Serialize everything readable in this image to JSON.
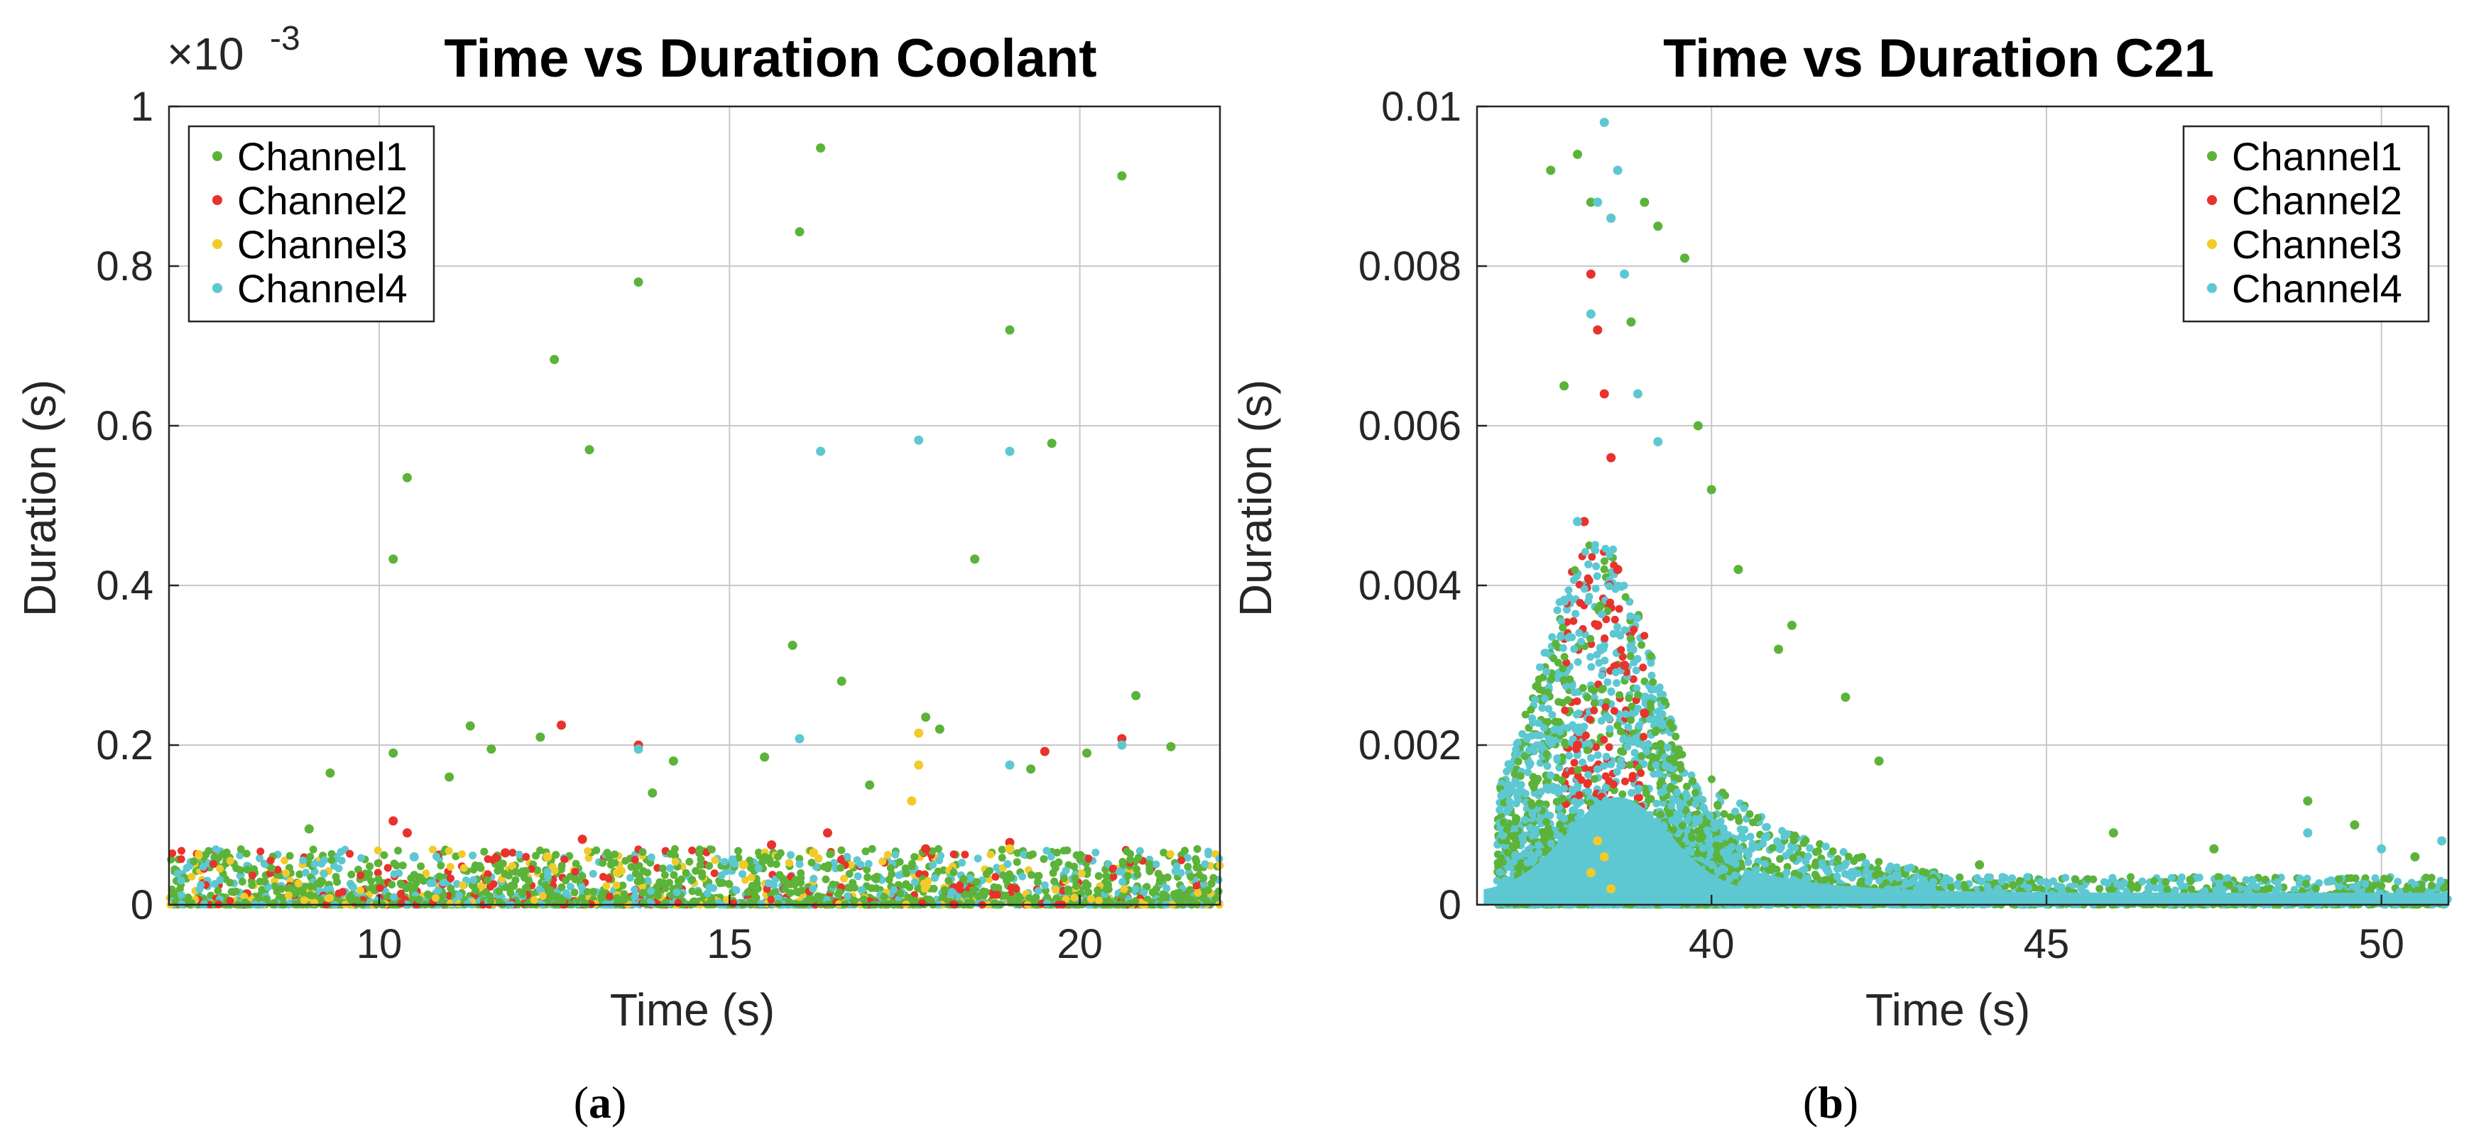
{
  "chart_data": [
    {
      "type": "scatter",
      "title": "Time vs Duration Coolant",
      "xlabel": "Time (s)",
      "ylabel": "Duration (s)",
      "exponent_base": "×10",
      "exponent_power": "-3",
      "xlim": [
        7,
        22
      ],
      "ylim": [
        0,
        0.001
      ],
      "xticks": [
        10,
        15,
        20
      ],
      "xtick_labels": [
        "10",
        "15",
        "20"
      ],
      "yticks": [
        0,
        0.0002,
        0.0004,
        0.0006,
        0.0008,
        0.001
      ],
      "ytick_labels": [
        "0",
        "0.2",
        "0.4",
        "0.6",
        "0.8",
        "1"
      ],
      "grid": true,
      "legend_position": "top-left",
      "panel_label": "a",
      "series": [
        {
          "name": "Channel1",
          "color": "#5cb33a",
          "x": [
            10.2,
            10.4,
            12.5,
            13.0,
            13.7,
            16.0,
            16.3,
            19.0,
            19.6,
            20.6,
            18.5,
            10.2,
            11.3,
            15.9,
            16.6,
            20.8,
            17.8,
            18.0,
            9.3,
            11.6,
            14.2,
            20.1,
            21.3,
            12.3,
            15.5,
            9.0,
            11.0,
            13.9,
            17.0,
            19.3
          ],
          "y": [
            0.000433,
            0.000535,
            0.000683,
            0.00057,
            0.00078,
            0.000843,
            0.000948,
            0.00072,
            0.000578,
            0.000913,
            0.000433,
            0.00019,
            0.000224,
            0.000325,
            0.00028,
            0.000262,
            0.000235,
            0.00022,
            0.000165,
            0.000195,
            0.00018,
            0.00019,
            0.000198,
            0.00021,
            0.000185,
            9.5e-05,
            0.00016,
            0.00014,
            0.00015,
            0.00017
          ]
        },
        {
          "name": "Channel2",
          "color": "#e8322b",
          "x": [
            10.2,
            10.4,
            12.6,
            13.7,
            16.4,
            19.5,
            20.6,
            12.9,
            15.6,
            17.8,
            19.0,
            11.8
          ],
          "y": [
            0.000105,
            9e-05,
            0.000225,
            0.0002,
            9e-05,
            0.000192,
            0.000208,
            8.2e-05,
            7.5e-05,
            7e-05,
            7.8e-05,
            6.5e-05
          ]
        },
        {
          "name": "Channel3",
          "color": "#f2cb2a",
          "x": [
            17.7,
            17.7,
            17.6,
            12.4,
            19.0,
            15.2,
            13.4,
            16.2
          ],
          "y": [
            0.000215,
            0.000175,
            0.00013,
            6e-05,
            7e-05,
            5e-05,
            4e-05,
            6.5e-05
          ]
        },
        {
          "name": "Channel4",
          "color": "#5dc8d2",
          "x": [
            16.3,
            17.7,
            19.0,
            16.0,
            19.0,
            13.7,
            20.6,
            10.5
          ],
          "y": [
            0.000568,
            0.000582,
            0.000568,
            0.000208,
            0.000175,
            0.000195,
            0.0002,
            6e-05
          ]
        }
      ],
      "dense_band_note": "dense cluster of points from all channels near 0–0.00005 s across the whole time range"
    },
    {
      "type": "scatter",
      "title": "Time vs Duration C21",
      "xlabel": "Time (s)",
      "ylabel": "Duration (s)",
      "xlim": [
        36.5,
        51
      ],
      "ylim": [
        0,
        0.01
      ],
      "xticks": [
        40,
        45,
        50
      ],
      "xtick_labels": [
        "40",
        "45",
        "50"
      ],
      "yticks": [
        0,
        0.002,
        0.004,
        0.006,
        0.008,
        0.01
      ],
      "ytick_labels": [
        "0",
        "0.002",
        "0.004",
        "0.006",
        "0.008",
        "0.01"
      ],
      "grid": true,
      "legend_position": "top-right",
      "panel_label": "b",
      "series": [
        {
          "name": "Channel1",
          "color": "#5cb33a",
          "x": [
            37.6,
            38.0,
            38.2,
            38.5,
            39.0,
            39.2,
            39.6,
            39.8,
            40.0,
            40.4,
            41.0,
            41.2,
            42.0,
            42.5,
            38.8,
            37.8,
            48.9,
            49.6,
            50.5,
            44.0,
            46.0,
            47.5
          ],
          "y": [
            0.0092,
            0.0094,
            0.0088,
            0.0086,
            0.0088,
            0.0085,
            0.0081,
            0.006,
            0.0052,
            0.0042,
            0.0032,
            0.0035,
            0.0026,
            0.0018,
            0.0073,
            0.0065,
            0.0013,
            0.001,
            0.0006,
            0.0005,
            0.0009,
            0.0007
          ]
        },
        {
          "name": "Channel2",
          "color": "#e8322b",
          "x": [
            38.2,
            38.3,
            38.4,
            38.5,
            38.1,
            38.6,
            38.3,
            38.7,
            39.0,
            38.0
          ],
          "y": [
            0.0079,
            0.0072,
            0.0064,
            0.0056,
            0.0048,
            0.0042,
            0.0035,
            0.003,
            0.0024,
            0.002
          ]
        },
        {
          "name": "Channel3",
          "color": "#f2cb2a",
          "x": [
            38.3,
            38.4,
            38.2,
            38.5
          ],
          "y": [
            0.0008,
            0.0006,
            0.0004,
            0.0002
          ]
        },
        {
          "name": "Channel4",
          "color": "#5dc8d2",
          "x": [
            38.4,
            38.6,
            38.3,
            38.5,
            38.7,
            38.2,
            38.9,
            39.2,
            38.0,
            48.9,
            50.0,
            50.9
          ],
          "y": [
            0.0098,
            0.0092,
            0.0088,
            0.0086,
            0.0079,
            0.0074,
            0.0064,
            0.0058,
            0.0048,
            0.0009,
            0.0007,
            0.0008
          ]
        }
      ],
      "dense_band_note": "large dense cyan/green cloud near 37–40 s and 0–0.004 s, tapering to a low band toward 51 s"
    }
  ]
}
